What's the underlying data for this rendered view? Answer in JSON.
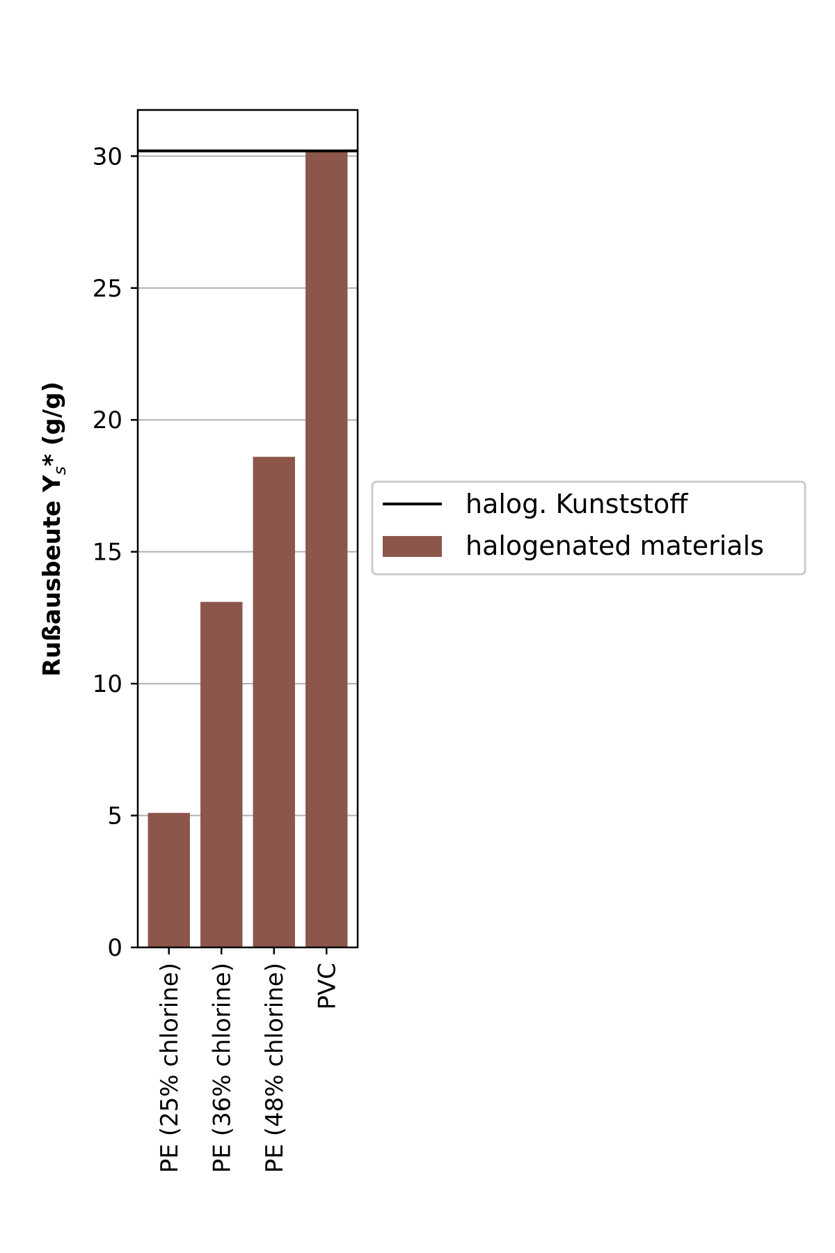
{
  "chart_data": {
    "type": "bar",
    "categories": [
      "PE (25% chlorine)",
      "PE (36% chlorine)",
      "PE (48% chlorine)",
      "PVC"
    ],
    "series": [
      {
        "name": "halogenated materials",
        "values": [
          5.1,
          13.1,
          18.6,
          30.2
        ],
        "color": "#8c564b"
      }
    ],
    "reference_lines": [
      {
        "name": "halog. Kunststoff",
        "value": 30.2,
        "color": "#000000"
      }
    ],
    "ylabel_main": "Rußausbeute Y",
    "ylabel_sub": "s",
    "ylabel_end": "* (g/g)",
    "ylim": [
      0,
      31.75
    ],
    "yticks": [
      0,
      5,
      10,
      15,
      20,
      25,
      30
    ],
    "grid": "horizontal",
    "legend_position": "right"
  }
}
